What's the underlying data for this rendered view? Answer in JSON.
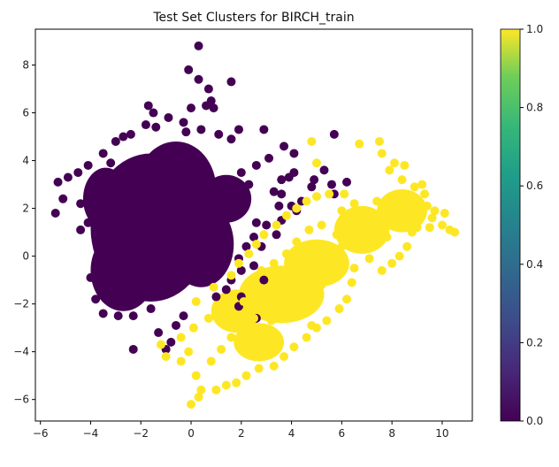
{
  "chart_data": {
    "type": "scatter",
    "title": "Test Set Clusters for BIRCH_train",
    "xlabel": "",
    "ylabel": "",
    "xlim": [
      -6.2,
      11.2
    ],
    "ylim": [
      -6.9,
      9.5
    ],
    "xticks": [
      -6,
      -4,
      -2,
      0,
      2,
      4,
      6,
      8,
      10
    ],
    "yticks": [
      -6,
      -4,
      -2,
      0,
      2,
      4,
      6,
      8
    ],
    "grid": false,
    "colormap": "viridis",
    "colorbar": {
      "ticks": [
        0.0,
        0.2,
        0.4,
        0.6,
        0.8,
        1.0
      ],
      "tick_labels": [
        "0.0",
        "0.2",
        "0.4",
        "0.6",
        "0.8",
        "1.0"
      ],
      "range": [
        0.0,
        1.0
      ]
    },
    "series": [
      {
        "cluster": 0,
        "color": "#440154",
        "points": [
          [
            0.3,
            8.8
          ],
          [
            -0.1,
            7.8
          ],
          [
            1.6,
            7.3
          ],
          [
            0.0,
            6.2
          ],
          [
            0.9,
            6.2
          ],
          [
            0.3,
            7.4
          ],
          [
            0.7,
            7.0
          ],
          [
            0.8,
            6.5
          ],
          [
            0.6,
            6.3
          ],
          [
            -1.7,
            6.3
          ],
          [
            -1.5,
            6.0
          ],
          [
            -0.9,
            5.8
          ],
          [
            -1.8,
            5.5
          ],
          [
            -2.7,
            5.0
          ],
          [
            -3.0,
            4.8
          ],
          [
            -2.4,
            5.1
          ],
          [
            -1.4,
            5.4
          ],
          [
            -0.3,
            5.6
          ],
          [
            -0.2,
            5.2
          ],
          [
            0.4,
            5.3
          ],
          [
            1.1,
            5.1
          ],
          [
            1.9,
            5.3
          ],
          [
            2.9,
            5.3
          ],
          [
            1.6,
            4.9
          ],
          [
            3.7,
            4.6
          ],
          [
            4.1,
            4.3
          ],
          [
            5.7,
            5.1
          ],
          [
            3.1,
            4.1
          ],
          [
            2.6,
            3.8
          ],
          [
            2.0,
            3.5
          ],
          [
            2.3,
            3.0
          ],
          [
            3.6,
            3.2
          ],
          [
            4.1,
            3.5
          ],
          [
            4.8,
            2.9
          ],
          [
            5.3,
            3.6
          ],
          [
            4.9,
            3.2
          ],
          [
            6.2,
            3.1
          ],
          [
            5.6,
            3.0
          ],
          [
            4.4,
            2.3
          ],
          [
            3.5,
            2.1
          ],
          [
            3.3,
            2.7
          ],
          [
            3.6,
            2.6
          ],
          [
            3.9,
            3.3
          ],
          [
            5.7,
            2.6
          ],
          [
            3.0,
            1.3
          ],
          [
            2.6,
            1.4
          ],
          [
            4.2,
            1.9
          ],
          [
            4.0,
            2.1
          ],
          [
            3.6,
            1.5
          ],
          [
            3.4,
            0.9
          ],
          [
            2.5,
            0.8
          ],
          [
            2.2,
            0.4
          ],
          [
            2.8,
            0.4
          ],
          [
            1.9,
            -0.1
          ],
          [
            2.0,
            -0.6
          ],
          [
            1.6,
            -1.0
          ],
          [
            1.4,
            -1.4
          ],
          [
            2.0,
            -1.7
          ],
          [
            2.9,
            -1.0
          ],
          [
            2.5,
            -0.4
          ],
          [
            2.6,
            -2.6
          ],
          [
            1.9,
            -2.1
          ],
          [
            1.0,
            -1.7
          ],
          [
            0.4,
            -1.0
          ],
          [
            -0.3,
            -2.5
          ],
          [
            -0.6,
            -2.9
          ],
          [
            -0.8,
            -3.6
          ],
          [
            -1.0,
            -3.9
          ],
          [
            -2.3,
            -3.9
          ],
          [
            -1.3,
            -3.2
          ],
          [
            -1.6,
            -2.2
          ],
          [
            -2.3,
            -2.5
          ],
          [
            -2.9,
            -2.5
          ],
          [
            -3.5,
            -2.4
          ],
          [
            -3.8,
            -1.8
          ],
          [
            -3.0,
            -0.6
          ],
          [
            -4.0,
            -0.9
          ],
          [
            -3.5,
            0.2
          ],
          [
            -3.8,
            0.8
          ],
          [
            -4.4,
            1.1
          ],
          [
            -4.1,
            1.4
          ],
          [
            -5.4,
            1.8
          ],
          [
            -5.1,
            2.4
          ],
          [
            -5.3,
            3.1
          ],
          [
            -4.5,
            3.5
          ],
          [
            -4.9,
            3.3
          ],
          [
            -4.4,
            2.2
          ],
          [
            -3.8,
            2.5
          ],
          [
            -4.1,
            3.8
          ],
          [
            -3.5,
            4.3
          ],
          [
            -3.2,
            3.9
          ]
        ]
      },
      {
        "cluster": 1,
        "color": "#fde725",
        "points": [
          [
            7.5,
            4.8
          ],
          [
            6.7,
            4.7
          ],
          [
            7.6,
            4.3
          ],
          [
            7.9,
            3.6
          ],
          [
            8.1,
            3.9
          ],
          [
            8.5,
            3.8
          ],
          [
            8.4,
            3.2
          ],
          [
            9.2,
            3.0
          ],
          [
            8.9,
            2.9
          ],
          [
            9.3,
            2.6
          ],
          [
            9.4,
            2.1
          ],
          [
            9.7,
            1.9
          ],
          [
            10.1,
            1.8
          ],
          [
            10.0,
            1.3
          ],
          [
            10.3,
            1.1
          ],
          [
            10.5,
            1.0
          ],
          [
            9.5,
            1.2
          ],
          [
            9.0,
            1.2
          ],
          [
            8.2,
            1.5
          ],
          [
            7.8,
            0.8
          ],
          [
            8.6,
            0.4
          ],
          [
            8.0,
            -0.3
          ],
          [
            8.3,
            0.0
          ],
          [
            7.6,
            -0.6
          ],
          [
            7.1,
            -0.1
          ],
          [
            6.5,
            -0.5
          ],
          [
            6.0,
            0.4
          ],
          [
            6.4,
            -1.1
          ],
          [
            6.2,
            -1.8
          ],
          [
            5.9,
            -2.2
          ],
          [
            5.4,
            -2.7
          ],
          [
            5.0,
            -3.0
          ],
          [
            4.6,
            -3.4
          ],
          [
            4.1,
            -3.8
          ],
          [
            3.7,
            -4.2
          ],
          [
            3.3,
            -4.6
          ],
          [
            2.7,
            -4.7
          ],
          [
            2.2,
            -5.0
          ],
          [
            1.8,
            -5.3
          ],
          [
            1.4,
            -5.4
          ],
          [
            1.0,
            -5.6
          ],
          [
            0.4,
            -5.6
          ],
          [
            0.0,
            -6.2
          ],
          [
            0.3,
            -5.9
          ],
          [
            0.2,
            -5.0
          ],
          [
            0.8,
            -4.4
          ],
          [
            -0.1,
            -4.0
          ],
          [
            -0.4,
            -4.4
          ],
          [
            -1.0,
            -4.2
          ],
          [
            -1.2,
            -3.7
          ],
          [
            -0.4,
            -3.4
          ],
          [
            0.1,
            -3.0
          ],
          [
            0.7,
            -2.6
          ],
          [
            0.2,
            -1.9
          ],
          [
            0.9,
            -1.3
          ],
          [
            1.6,
            -0.8
          ],
          [
            1.9,
            -0.3
          ],
          [
            2.3,
            0.1
          ],
          [
            2.6,
            0.5
          ],
          [
            2.9,
            0.9
          ],
          [
            3.4,
            1.3
          ],
          [
            3.8,
            1.7
          ],
          [
            4.2,
            2.0
          ],
          [
            4.6,
            2.3
          ],
          [
            5.0,
            2.5
          ],
          [
            5.5,
            2.6
          ],
          [
            6.1,
            2.6
          ],
          [
            6.5,
            2.2
          ],
          [
            5.2,
            1.3
          ],
          [
            4.7,
            1.1
          ],
          [
            4.2,
            0.6
          ],
          [
            3.8,
            0.1
          ],
          [
            3.3,
            -0.3
          ],
          [
            2.8,
            -0.6
          ],
          [
            3.1,
            -1.4
          ],
          [
            3.6,
            -1.7
          ],
          [
            4.0,
            -2.2
          ],
          [
            4.5,
            -2.4
          ],
          [
            4.8,
            -2.9
          ],
          [
            2.5,
            -2.6
          ],
          [
            2.0,
            -3.0
          ],
          [
            1.6,
            -3.4
          ],
          [
            1.2,
            -3.9
          ],
          [
            1.5,
            -2.1
          ],
          [
            2.1,
            -1.9
          ],
          [
            3.2,
            -2.7
          ],
          [
            2.9,
            -3.2
          ],
          [
            5.8,
            0.9
          ],
          [
            6.8,
            1.7
          ],
          [
            7.4,
            2.3
          ],
          [
            8.7,
            2.4
          ],
          [
            8.8,
            1.0
          ],
          [
            9.6,
            1.6
          ],
          [
            4.8,
            4.8
          ],
          [
            5.0,
            3.9
          ],
          [
            6.0,
            1.9
          ],
          [
            7.0,
            0.6
          ],
          [
            5.7,
            -0.4
          ],
          [
            5.2,
            -1.2
          ],
          [
            4.2,
            -1.1
          ],
          [
            3.7,
            -0.9
          ]
        ]
      }
    ]
  }
}
